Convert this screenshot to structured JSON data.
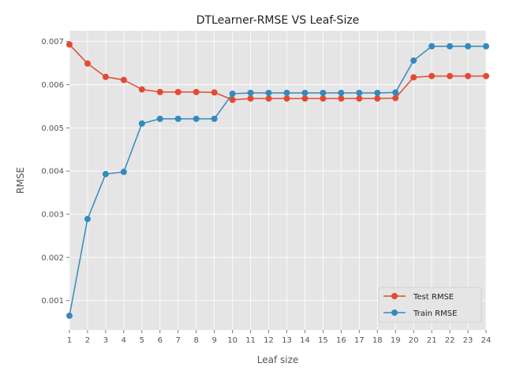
{
  "chart_data": {
    "type": "line",
    "title": "DTLearner-RMSE VS Leaf-Size",
    "xlabel": "Leaf size",
    "ylabel": "RMSE",
    "x": [
      1,
      2,
      3,
      4,
      5,
      6,
      7,
      8,
      9,
      10,
      11,
      12,
      13,
      14,
      15,
      16,
      17,
      18,
      19,
      20,
      21,
      22,
      23,
      24
    ],
    "xlim": [
      1,
      24
    ],
    "ylim": [
      0.00032,
      0.00725
    ],
    "y_ticks": [
      "0.001",
      "0.002",
      "0.003",
      "0.004",
      "0.005",
      "0.006",
      "0.007"
    ],
    "y_tick_values": [
      0.001,
      0.002,
      0.003,
      0.004,
      0.005,
      0.006,
      0.007
    ],
    "grid": true,
    "legend_position": "lower-right",
    "series": [
      {
        "name": "Test RMSE",
        "color": "#E24A33",
        "values": [
          0.00693,
          0.00649,
          0.00618,
          0.00611,
          0.00589,
          0.00583,
          0.00583,
          0.00583,
          0.00582,
          0.00565,
          0.00568,
          0.00568,
          0.00568,
          0.00568,
          0.00568,
          0.00568,
          0.00568,
          0.00568,
          0.00569,
          0.00617,
          0.0062,
          0.0062,
          0.0062,
          0.0062
        ]
      },
      {
        "name": "Train RMSE",
        "color": "#348ABD",
        "values": [
          0.00065,
          0.00289,
          0.00393,
          0.00398,
          0.0051,
          0.00521,
          0.00521,
          0.00521,
          0.00521,
          0.00579,
          0.00581,
          0.00581,
          0.00581,
          0.00581,
          0.00581,
          0.00581,
          0.00581,
          0.00581,
          0.00582,
          0.00656,
          0.00689,
          0.00689,
          0.00689,
          0.00689
        ]
      }
    ]
  }
}
